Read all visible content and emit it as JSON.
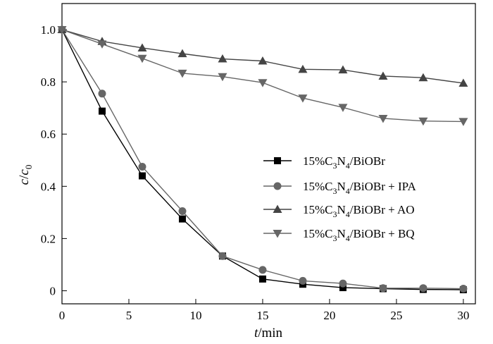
{
  "chart_data": {
    "type": "line",
    "xlabel": {
      "italic": "t",
      "rest": "/min"
    },
    "ylabel": {
      "c": "c",
      "slash": "/",
      "c0": "c",
      "sub": "0"
    },
    "xlim": [
      0,
      30.9
    ],
    "ylim": [
      -0.05,
      1.1
    ],
    "xticks": [
      0,
      5,
      10,
      15,
      20,
      25,
      30
    ],
    "yticks": [
      0,
      0.2,
      0.4,
      0.6,
      0.8,
      1.0
    ],
    "ytick_labels": [
      "0",
      "0.2",
      "0.4",
      "0.6",
      "0.8",
      "1.0"
    ],
    "legend_position": "center-right",
    "x": [
      0,
      3,
      6,
      9,
      12,
      15,
      18,
      21,
      24,
      27,
      30
    ],
    "series": [
      {
        "name": {
          "prefix": "15%",
          "c": "C",
          "sub1": "3",
          "n": "N",
          "sub2": "4",
          "rest": "/BiOBr",
          "suffix": ""
        },
        "marker": "square",
        "color": "#000000",
        "values": [
          1.0,
          0.688,
          0.44,
          0.275,
          0.133,
          0.045,
          0.025,
          0.012,
          0.008,
          0.005,
          0.004
        ]
      },
      {
        "name": {
          "prefix": "15%",
          "c": "C",
          "sub1": "3",
          "n": "N",
          "sub2": "4",
          "rest": "/BiOBr",
          "suffix": " + IPA"
        },
        "marker": "circle",
        "color": "#666666",
        "values": [
          1.0,
          0.755,
          0.475,
          0.305,
          0.133,
          0.08,
          0.038,
          0.028,
          0.01,
          0.01,
          0.008
        ]
      },
      {
        "name": {
          "prefix": "15%",
          "c": "C",
          "sub1": "3",
          "n": "N",
          "sub2": "4",
          "rest": "/BiOBr",
          "suffix": " + AO"
        },
        "marker": "triangle-up",
        "color": "#444444",
        "values": [
          1.0,
          0.955,
          0.93,
          0.908,
          0.888,
          0.88,
          0.848,
          0.846,
          0.822,
          0.816,
          0.795
        ]
      },
      {
        "name": {
          "prefix": "15%",
          "c": "C",
          "sub1": "3",
          "n": "N",
          "sub2": "4",
          "rest": "/BiOBr",
          "suffix": " + BQ"
        },
        "marker": "triangle-down",
        "color": "#666666",
        "values": [
          1.0,
          0.945,
          0.89,
          0.833,
          0.82,
          0.797,
          0.738,
          0.702,
          0.66,
          0.65,
          0.648
        ]
      }
    ]
  }
}
